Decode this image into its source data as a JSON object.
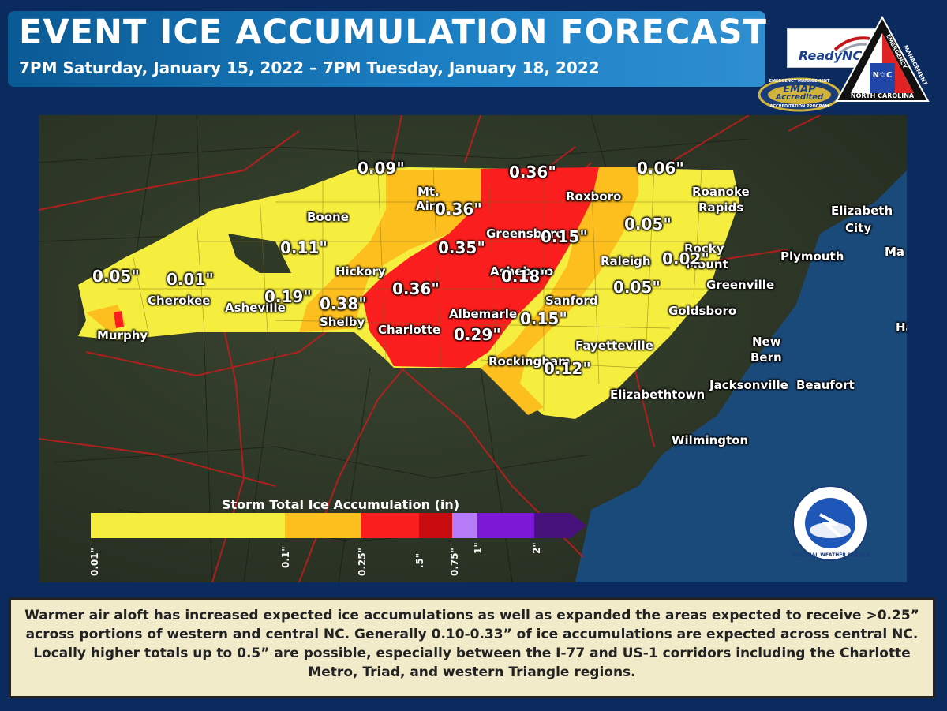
{
  "header": {
    "title": "EVENT ICE ACCUMULATION FORECAST",
    "subtitle": "7PM Saturday, January 15, 2022 – 7PM Tuesday, January 18, 2022"
  },
  "logos": {
    "readync": "ReadyNC",
    "emap_top": "EMERGENCY MANAGEMENT",
    "emap_main": "EMAP",
    "emap_sub": "Accredited",
    "emap_bottom": "ACCREDITATION PROGRAM",
    "ncem_side1": "EMERGENCY",
    "ncem_side2": "MANAGEMENT",
    "ncem_nc": "N☆C",
    "ncem_bottom": "NORTH CAROLINA",
    "nws_ring": "NATIONAL WEATHER SERVICE"
  },
  "cities": [
    {
      "name": "Boone"
    },
    {
      "name": "Mt."
    },
    {
      "name": "Airy"
    },
    {
      "name": "Roxboro"
    },
    {
      "name": "Roanoke"
    },
    {
      "name": "Rapids"
    },
    {
      "name": "Elizabeth"
    },
    {
      "name": "City"
    },
    {
      "name": "Greensboro"
    },
    {
      "name": "Raleigh"
    },
    {
      "name": "Rocky"
    },
    {
      "name": "Mount"
    },
    {
      "name": "Plymouth"
    },
    {
      "name": "Hickory"
    },
    {
      "name": "Asheboro"
    },
    {
      "name": "Greenville"
    },
    {
      "name": "Cherokee"
    },
    {
      "name": "Asheville"
    },
    {
      "name": "Shelby"
    },
    {
      "name": "Sanford"
    },
    {
      "name": "Goldsboro"
    },
    {
      "name": "Charlotte"
    },
    {
      "name": "Albemarle"
    },
    {
      "name": "Murphy"
    },
    {
      "name": "Fayetteville"
    },
    {
      "name": "New"
    },
    {
      "name": "Bern"
    },
    {
      "name": "Rockingham"
    },
    {
      "name": "Jacksonville"
    },
    {
      "name": "Beaufort"
    },
    {
      "name": "Elizabethtown"
    },
    {
      "name": "Wilmington"
    },
    {
      "name": "Ma"
    },
    {
      "name": "Ha"
    }
  ],
  "accumulation_values": [
    "0.09\"",
    "0.36\"",
    "0.06\"",
    "0.36\"",
    "0.11\"",
    "0.35\"",
    "0.15\"",
    "0.05\"",
    "0.02\"",
    "0.05\"",
    "0.01\"",
    "0.18\"",
    "0.36\"",
    "0.19\"",
    "0.38\"",
    "0.05\"",
    "0.15\"",
    "0.29\"",
    "0.12\""
  ],
  "legend": {
    "title": "Storm Total Ice Accumulation (in)",
    "ticks": [
      "0.01\"",
      "0.1\"",
      "0.25\"",
      ".5\"",
      "0.75\"",
      "1\"",
      "2\""
    ],
    "colors": [
      "#f6ee3f",
      "#fdbf1d",
      "#fb1e1e",
      "#c90c10",
      "#b67cf8",
      "#7c18d6",
      "#46117a"
    ]
  },
  "caption": "Warmer air aloft has increased expected ice accumulations as well as expanded the areas expected to receive >0.25” across portions of western and central NC. Generally 0.10-0.33” of ice accumulations are expected across central NC. Locally higher totals up to 0.5” are possible, especially between the I-77 and US-1 corridors including the Charlotte Metro, Triad, and western Triangle regions."
}
